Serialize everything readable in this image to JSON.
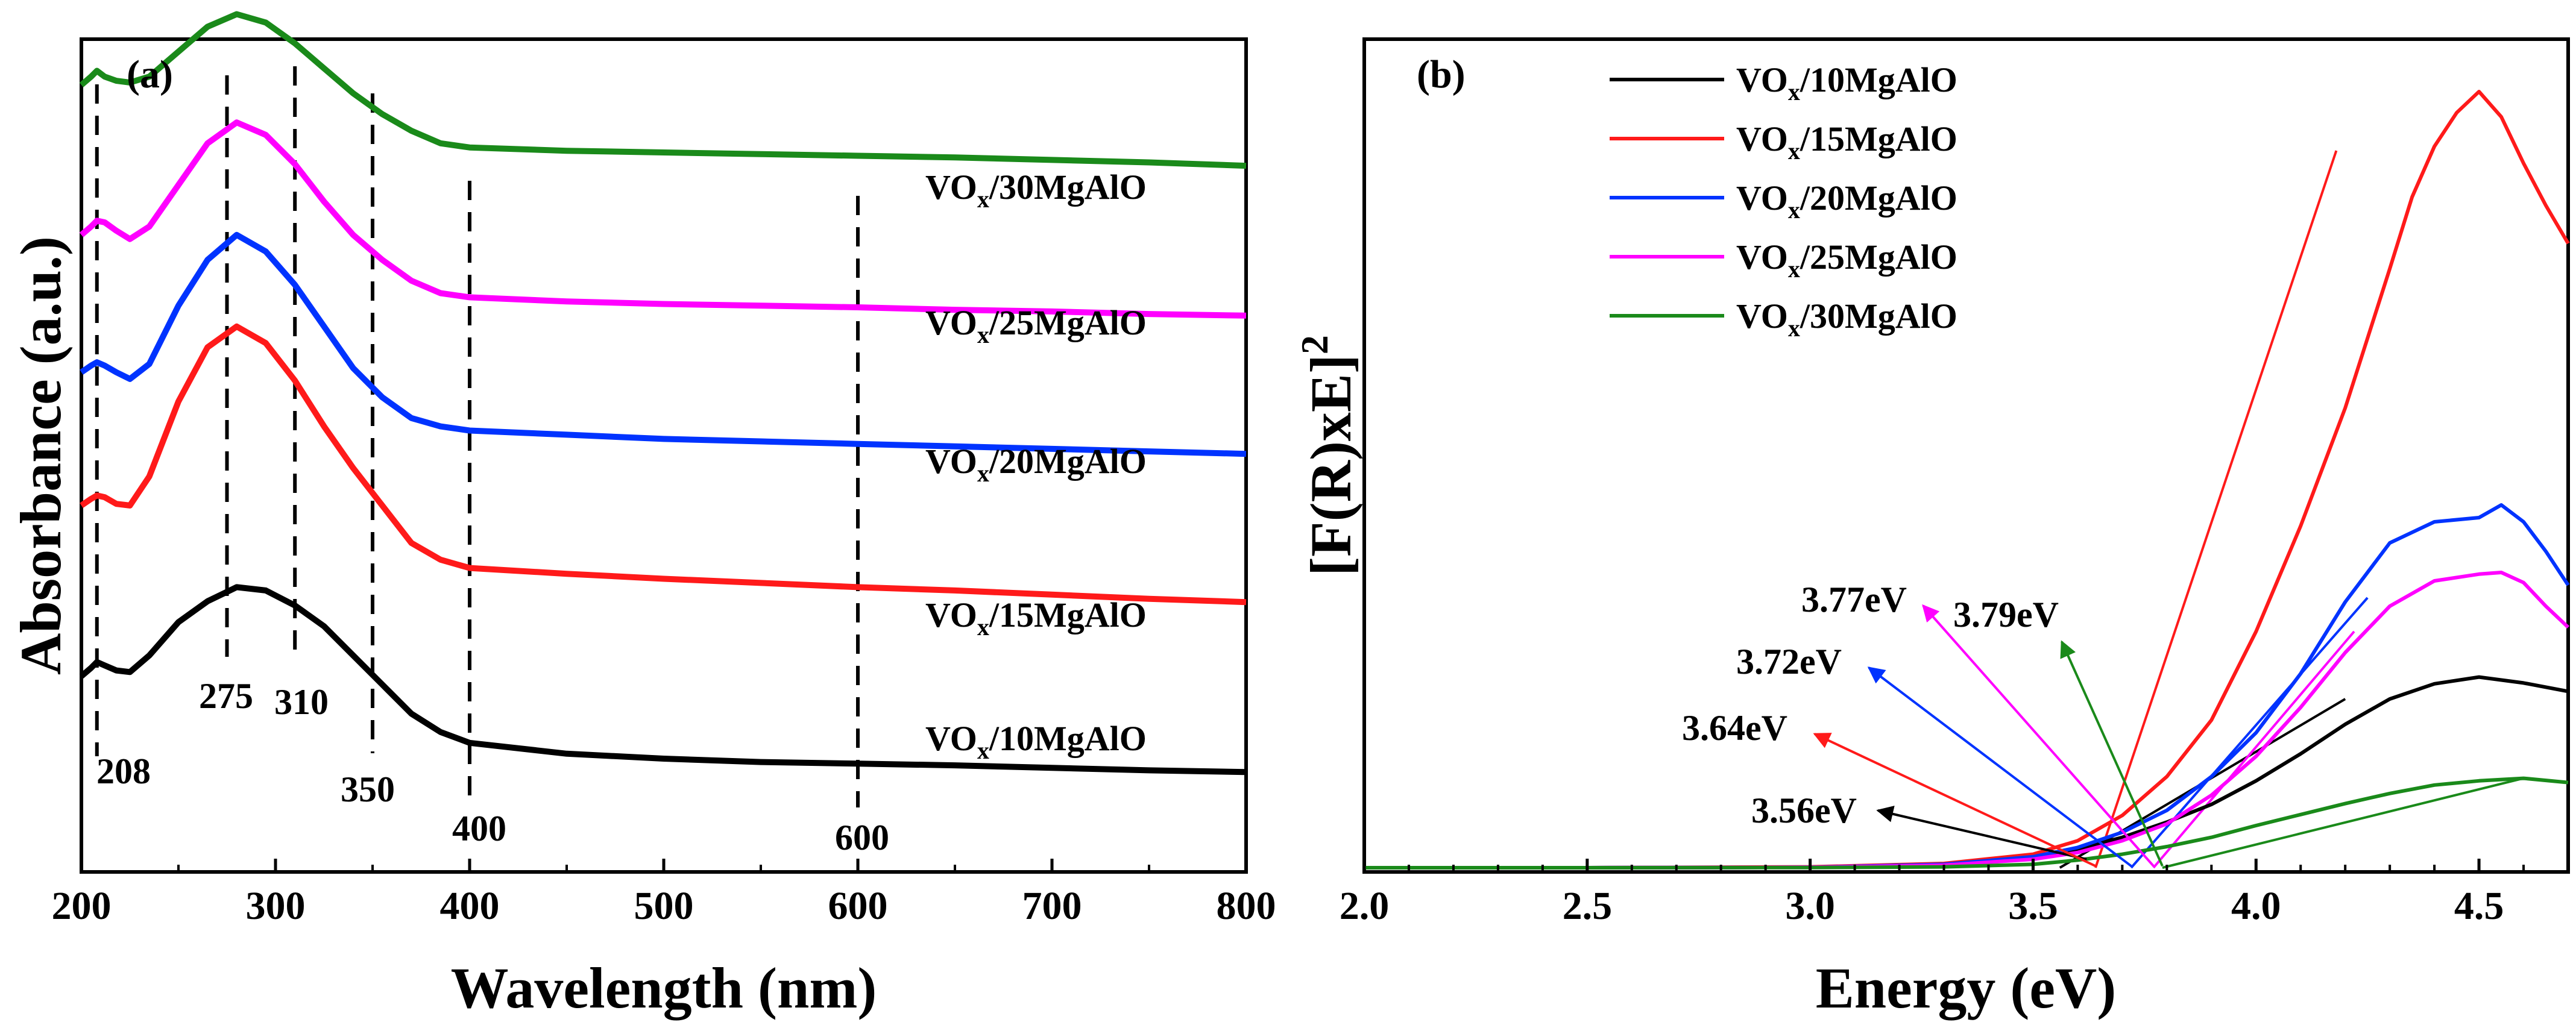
{
  "chart_data": [
    {
      "panel": "(a)",
      "type": "line",
      "title": "",
      "xlabel": "Wavelength (nm)",
      "ylabel": "Absorbance (a.u.)",
      "xlim": [
        200,
        800
      ],
      "ylim": [
        0,
        10
      ],
      "y_ticks_shown": false,
      "x_ticks": [
        200,
        300,
        400,
        500,
        600,
        700,
        800
      ],
      "x_tick_labels": [
        "200",
        "300",
        "400",
        "500",
        "600",
        "700",
        "800"
      ],
      "series": [
        {
          "name": "VOx/30MgAlO",
          "label_main": "VO",
          "label_sub": "x",
          "label_rest": "/30MgAlO",
          "color": "#1a8a1a",
          "x": [
            200,
            205,
            208,
            212,
            218,
            225,
            235,
            250,
            265,
            280,
            295,
            310,
            325,
            340,
            355,
            370,
            385,
            400,
            450,
            500,
            550,
            600,
            650,
            700,
            750,
            800
          ],
          "y": [
            9.45,
            9.55,
            9.62,
            9.55,
            9.5,
            9.48,
            9.55,
            9.85,
            10.15,
            10.3,
            10.2,
            9.95,
            9.65,
            9.35,
            9.1,
            8.9,
            8.75,
            8.7,
            8.66,
            8.64,
            8.62,
            8.6,
            8.58,
            8.55,
            8.52,
            8.48
          ]
        },
        {
          "name": "VOx/25MgAlO",
          "label_main": "VO",
          "label_sub": "x",
          "label_rest": "/25MgAlO",
          "color": "#ff00ff",
          "x": [
            200,
            205,
            208,
            212,
            218,
            225,
            235,
            250,
            265,
            280,
            295,
            310,
            325,
            340,
            355,
            370,
            385,
            400,
            450,
            500,
            550,
            600,
            650,
            700,
            750,
            800
          ],
          "y": [
            7.65,
            7.75,
            7.82,
            7.8,
            7.7,
            7.6,
            7.75,
            8.25,
            8.75,
            9.0,
            8.85,
            8.5,
            8.05,
            7.65,
            7.35,
            7.1,
            6.95,
            6.9,
            6.85,
            6.82,
            6.8,
            6.78,
            6.75,
            6.73,
            6.7,
            6.68
          ]
        },
        {
          "name": "VOx/20MgAlO",
          "label_main": "VO",
          "label_sub": "x",
          "label_rest": "/20MgAlO",
          "color": "#0033ff",
          "x": [
            200,
            205,
            208,
            212,
            218,
            225,
            235,
            250,
            265,
            280,
            295,
            310,
            325,
            340,
            355,
            370,
            385,
            400,
            450,
            500,
            550,
            600,
            650,
            700,
            750,
            800
          ],
          "y": [
            6.0,
            6.08,
            6.12,
            6.08,
            6.0,
            5.92,
            6.1,
            6.8,
            7.35,
            7.65,
            7.45,
            7.05,
            6.55,
            6.05,
            5.7,
            5.45,
            5.35,
            5.3,
            5.25,
            5.2,
            5.17,
            5.14,
            5.11,
            5.08,
            5.05,
            5.02
          ]
        },
        {
          "name": "VOx/15MgAlO",
          "label_main": "VO",
          "label_sub": "x",
          "label_rest": "/15MgAlO",
          "color": "#ff1a1a",
          "x": [
            200,
            205,
            208,
            212,
            218,
            225,
            235,
            250,
            265,
            280,
            295,
            310,
            325,
            340,
            355,
            370,
            385,
            400,
            450,
            500,
            550,
            600,
            650,
            700,
            750,
            800
          ],
          "y": [
            4.4,
            4.48,
            4.52,
            4.5,
            4.42,
            4.4,
            4.75,
            5.65,
            6.3,
            6.55,
            6.35,
            5.9,
            5.35,
            4.85,
            4.4,
            3.95,
            3.75,
            3.65,
            3.58,
            3.52,
            3.47,
            3.42,
            3.38,
            3.33,
            3.28,
            3.24
          ]
        },
        {
          "name": "VOx/10MgAlO",
          "label_main": "VO",
          "label_sub": "x",
          "label_rest": "/10MgAlO",
          "color": "#000000",
          "x": [
            200,
            205,
            208,
            212,
            218,
            225,
            235,
            250,
            265,
            280,
            295,
            310,
            325,
            340,
            355,
            370,
            385,
            400,
            450,
            500,
            550,
            600,
            650,
            700,
            750,
            800
          ],
          "y": [
            2.35,
            2.45,
            2.52,
            2.48,
            2.42,
            2.4,
            2.6,
            3.0,
            3.25,
            3.42,
            3.38,
            3.2,
            2.95,
            2.6,
            2.25,
            1.9,
            1.68,
            1.55,
            1.42,
            1.36,
            1.32,
            1.3,
            1.28,
            1.25,
            1.22,
            1.2
          ]
        }
      ],
      "reference_lines": [
        {
          "x": 208,
          "label": "208"
        },
        {
          "x": 275,
          "label": "275"
        },
        {
          "x": 310,
          "label": "310"
        },
        {
          "x": 350,
          "label": "350"
        },
        {
          "x": 400,
          "label": "400"
        },
        {
          "x": 600,
          "label": "600"
        }
      ]
    },
    {
      "panel": "(b)",
      "type": "line",
      "title": "",
      "xlabel": "Energy (eV)",
      "ylabel_main": "[F(R)xE]",
      "ylabel_sup": "2",
      "xlim": [
        2.0,
        4.7
      ],
      "ylim": [
        0,
        100
      ],
      "y_ticks_shown": false,
      "x_ticks": [
        2.0,
        2.5,
        3.0,
        3.5,
        4.0,
        4.5
      ],
      "x_tick_labels": [
        "2.0",
        "2.5",
        "3.0",
        "3.5",
        "4.0",
        "4.5"
      ],
      "legend_position": "top-left",
      "series": [
        {
          "name": "VOx/10MgAlO",
          "label_main": "VO",
          "label_sub": "x",
          "label_rest": "/10MgAlO",
          "color": "#000000",
          "x": [
            2.0,
            2.5,
            3.0,
            3.3,
            3.5,
            3.6,
            3.7,
            3.8,
            3.9,
            4.0,
            4.1,
            4.2,
            4.3,
            4.4,
            4.5,
            4.6,
            4.7
          ],
          "y": [
            0,
            0,
            0.05,
            0.4,
            1.2,
            2.2,
            3.6,
            5.4,
            7.5,
            10.3,
            13.5,
            17.0,
            20.0,
            21.8,
            22.6,
            21.9,
            20.9
          ]
        },
        {
          "name": "VOx/15MgAlO",
          "label_main": "VO",
          "label_sub": "x",
          "label_rest": "/15MgAlO",
          "color": "#ff1a1a",
          "x": [
            2.0,
            2.5,
            3.0,
            3.3,
            3.5,
            3.6,
            3.7,
            3.8,
            3.9,
            4.0,
            4.1,
            4.2,
            4.3,
            4.35,
            4.4,
            4.45,
            4.5,
            4.55,
            4.6,
            4.65,
            4.7
          ],
          "y": [
            0,
            0,
            0.1,
            0.5,
            1.6,
            3.2,
            6.2,
            10.8,
            17.5,
            28.0,
            40.5,
            54.5,
            71.0,
            79.5,
            85.5,
            89.5,
            92.0,
            89.0,
            83.5,
            78.5,
            74.0
          ]
        },
        {
          "name": "VOx/20MgAlO",
          "label_main": "VO",
          "label_sub": "x",
          "label_rest": "/20MgAlO",
          "color": "#0033ff",
          "x": [
            2.0,
            2.5,
            3.0,
            3.3,
            3.5,
            3.6,
            3.7,
            3.8,
            3.9,
            4.0,
            4.1,
            4.2,
            4.3,
            4.4,
            4.5,
            4.55,
            4.6,
            4.65,
            4.7
          ],
          "y": [
            0,
            0,
            0.05,
            0.4,
            1.3,
            2.4,
            4.2,
            6.8,
            10.8,
            16.0,
            23.0,
            31.5,
            38.5,
            41.0,
            41.5,
            43.0,
            41.0,
            37.5,
            33.5
          ]
        },
        {
          "name": "VOx/25MgAlO",
          "label_main": "VO",
          "label_sub": "x",
          "label_rest": "/25MgAlO",
          "color": "#ff00ff",
          "x": [
            2.0,
            2.5,
            3.0,
            3.3,
            3.5,
            3.6,
            3.7,
            3.8,
            3.9,
            4.0,
            4.1,
            4.2,
            4.3,
            4.4,
            4.5,
            4.55,
            4.6,
            4.65,
            4.7
          ],
          "y": [
            0,
            0,
            0.05,
            0.3,
            1.0,
            1.8,
            3.2,
            5.2,
            8.6,
            13.2,
            19.0,
            25.5,
            31.0,
            34.0,
            34.8,
            35.0,
            33.8,
            31.0,
            28.5
          ]
        },
        {
          "name": "VOx/30MgAlO",
          "label_main": "VO",
          "label_sub": "x",
          "label_rest": "/30MgAlO",
          "color": "#1a8a1a",
          "x": [
            2.0,
            2.5,
            3.0,
            3.3,
            3.5,
            3.6,
            3.7,
            3.8,
            3.9,
            4.0,
            4.1,
            4.2,
            4.3,
            4.4,
            4.5,
            4.6,
            4.7
          ],
          "y": [
            0,
            0,
            0.02,
            0.1,
            0.4,
            0.9,
            1.6,
            2.5,
            3.6,
            5.0,
            6.3,
            7.6,
            8.8,
            9.8,
            10.3,
            10.6,
            10.1
          ]
        }
      ],
      "tangent_lines": [
        {
          "series": "VOx/10MgAlO",
          "x": [
            3.56,
            4.2
          ],
          "y": [
            0,
            20
          ],
          "color": "#000000"
        },
        {
          "series": "VOx/15MgAlO",
          "x": [
            3.64,
            4.18
          ],
          "y": [
            0,
            85
          ],
          "color": "#ff1a1a"
        },
        {
          "series": "VOx/20MgAlO",
          "x": [
            3.72,
            4.25
          ],
          "y": [
            0,
            32
          ],
          "color": "#0033ff"
        },
        {
          "series": "VOx/25MgAlO",
          "x": [
            3.77,
            4.22
          ],
          "y": [
            0,
            28
          ],
          "color": "#ff00ff"
        },
        {
          "series": "VOx/30MgAlO",
          "x": [
            3.79,
            4.6
          ],
          "y": [
            0,
            10.6
          ],
          "color": "#1a8a1a"
        }
      ],
      "annotations": [
        {
          "text": "3.56eV",
          "color": "#000000",
          "arrow_to": [
            3.62,
            1.0
          ]
        },
        {
          "text": "3.64eV",
          "color": "#ff1a1a",
          "arrow_to": [
            3.64,
            0.2
          ]
        },
        {
          "text": "3.72eV",
          "color": "#0033ff",
          "arrow_to": [
            3.72,
            0.2
          ]
        },
        {
          "text": "3.77eV",
          "color": "#ff00ff",
          "arrow_to": [
            3.77,
            0.2
          ]
        },
        {
          "text": "3.79eV",
          "color": "#1a8a1a",
          "arrow_to": [
            3.79,
            0.2
          ]
        }
      ]
    }
  ]
}
